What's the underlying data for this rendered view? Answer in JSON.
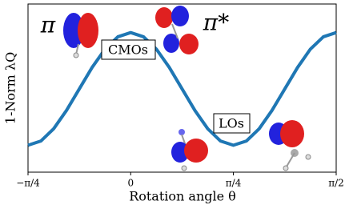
{
  "chart_data": {
    "type": "line",
    "x_label": "Rotation angle θ",
    "y_label": "1-Norm λQ",
    "x": [
      -0.785,
      -0.687,
      -0.589,
      -0.491,
      -0.393,
      -0.295,
      -0.196,
      -0.098,
      0,
      0.098,
      0.196,
      0.295,
      0.393,
      0.491,
      0.589,
      0.687,
      0.785,
      0.884,
      0.982,
      1.08,
      1.178,
      1.276,
      1.374,
      1.473,
      1.571
    ],
    "values": [
      0.16,
      0.185,
      0.258,
      0.367,
      0.495,
      0.623,
      0.732,
      0.805,
      0.83,
      0.805,
      0.732,
      0.623,
      0.495,
      0.367,
      0.258,
      0.185,
      0.16,
      0.185,
      0.258,
      0.367,
      0.495,
      0.623,
      0.732,
      0.805,
      0.83
    ],
    "color": "#1f77b4",
    "xlim": [
      -0.785,
      1.571
    ],
    "ylim": [
      0,
      1
    ],
    "xticks": [
      {
        "value": -0.785,
        "label": "−π/4"
      },
      0,
      {
        "value": 0.785,
        "label": "π/4"
      },
      {
        "value": 1.571,
        "label": "π/2"
      }
    ],
    "annotations": [
      "π",
      "π*",
      "CMOs",
      "LOs"
    ]
  }
}
